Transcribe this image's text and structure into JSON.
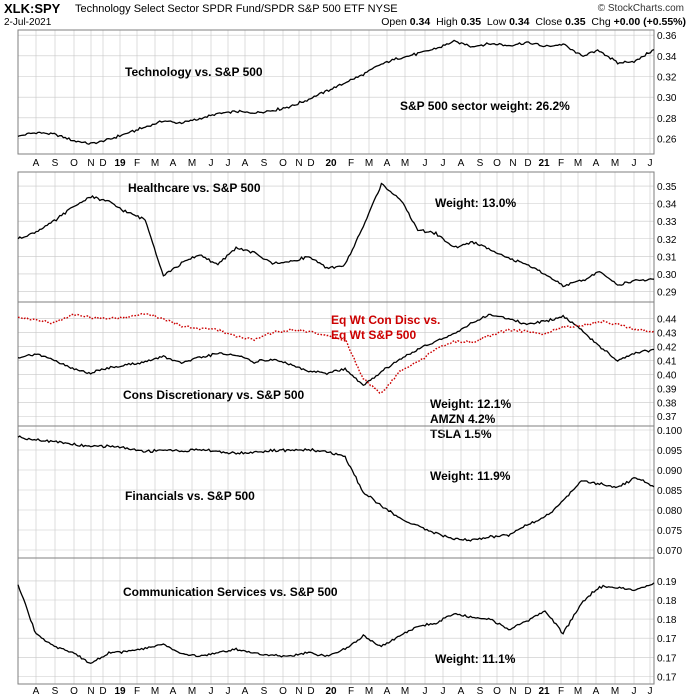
{
  "header": {
    "symbol": "XLK:SPY",
    "name": "Technology Select Sector SPDR Fund/SPDR S&P 500 ETF",
    "exchange": "NYSE",
    "date": "2-Jul-2021",
    "open_label": "Open",
    "open": "0.34",
    "high_label": "High",
    "high": "0.35",
    "low_label": "Low",
    "low": "0.34",
    "close_label": "Close",
    "close": "0.35",
    "chg_label": "Chg",
    "chg": "+0.00 (+0.55%)",
    "watermark": "© StockCharts.com"
  },
  "x_axis_ticks": [
    "A",
    "S",
    "O",
    "N",
    "D",
    "19",
    "F",
    "M",
    "A",
    "M",
    "J",
    "J",
    "A",
    "S",
    "O",
    "N",
    "D",
    "20",
    "F",
    "M",
    "A",
    "M",
    "J",
    "J",
    "A",
    "S",
    "O",
    "N",
    "D",
    "21",
    "F",
    "M",
    "A",
    "M",
    "J",
    "J"
  ],
  "colors": {
    "line": "#000000",
    "overlay": "#cc0000",
    "grid": "#c8c8c8",
    "axis": "#7f7f7f"
  },
  "chart_data": [
    {
      "type": "line",
      "title": "Technology vs. S&P 500",
      "annotations": [
        "S&P 500 sector weight: 26.2%"
      ],
      "x": [
        "2018-08",
        "2018-09",
        "2018-10",
        "2018-11",
        "2018-12",
        "2019-01",
        "2019-02",
        "2019-03",
        "2019-04",
        "2019-05",
        "2019-06",
        "2019-07",
        "2019-08",
        "2019-09",
        "2019-10",
        "2019-11",
        "2019-12",
        "2020-01",
        "2020-02",
        "2020-03",
        "2020-04",
        "2020-05",
        "2020-06",
        "2020-07",
        "2020-08",
        "2020-09",
        "2020-10",
        "2020-11",
        "2020-12",
        "2021-01",
        "2021-02",
        "2021-03",
        "2021-04",
        "2021-05",
        "2021-06",
        "2021-07"
      ],
      "series": [
        {
          "values": [
            0.262,
            0.266,
            0.264,
            0.258,
            0.255,
            0.259,
            0.265,
            0.271,
            0.277,
            0.275,
            0.279,
            0.284,
            0.286,
            0.285,
            0.287,
            0.291,
            0.298,
            0.306,
            0.314,
            0.322,
            0.332,
            0.338,
            0.342,
            0.347,
            0.354,
            0.349,
            0.352,
            0.35,
            0.353,
            0.349,
            0.351,
            0.34,
            0.345,
            0.333,
            0.335,
            0.346
          ]
        }
      ],
      "y_ticks": [
        0.26,
        0.28,
        0.3,
        0.32,
        0.34,
        0.36
      ],
      "ylim": [
        0.245,
        0.365
      ]
    },
    {
      "type": "line",
      "title": "Healthcare vs. S&P 500",
      "annotations": [
        "Weight: 13.0%"
      ],
      "x": [
        "2018-08",
        "2018-09",
        "2018-10",
        "2018-11",
        "2018-12",
        "2019-01",
        "2019-02",
        "2019-03",
        "2019-04",
        "2019-05",
        "2019-06",
        "2019-07",
        "2019-08",
        "2019-09",
        "2019-10",
        "2019-11",
        "2019-12",
        "2020-01",
        "2020-02",
        "2020-03",
        "2020-04",
        "2020-05",
        "2020-06",
        "2020-07",
        "2020-08",
        "2020-09",
        "2020-10",
        "2020-11",
        "2020-12",
        "2021-01",
        "2021-02",
        "2021-03",
        "2021-04",
        "2021-05",
        "2021-06",
        "2021-07"
      ],
      "series": [
        {
          "values": [
            0.32,
            0.324,
            0.33,
            0.338,
            0.344,
            0.341,
            0.335,
            0.331,
            0.299,
            0.306,
            0.311,
            0.305,
            0.315,
            0.312,
            0.306,
            0.307,
            0.31,
            0.303,
            0.305,
            0.327,
            0.351,
            0.343,
            0.325,
            0.323,
            0.315,
            0.318,
            0.314,
            0.309,
            0.305,
            0.3,
            0.293,
            0.296,
            0.301,
            0.294,
            0.296,
            0.297
          ]
        }
      ],
      "y_ticks": [
        0.29,
        0.3,
        0.31,
        0.32,
        0.33,
        0.34,
        0.35
      ],
      "ylim": [
        0.284,
        0.358
      ]
    },
    {
      "type": "line",
      "title": "Cons Discretionary vs. S&P 500",
      "annotations": [
        "Weight: 12.1%",
        "AMZN 4.2%",
        "TSLA 1.5%",
        "Eq Wt Con Disc vs.",
        "Eq Wt S&P 500"
      ],
      "x": [
        "2018-08",
        "2018-09",
        "2018-10",
        "2018-11",
        "2018-12",
        "2019-01",
        "2019-02",
        "2019-03",
        "2019-04",
        "2019-05",
        "2019-06",
        "2019-07",
        "2019-08",
        "2019-09",
        "2019-10",
        "2019-11",
        "2019-12",
        "2020-01",
        "2020-02",
        "2020-03",
        "2020-04",
        "2020-05",
        "2020-06",
        "2020-07",
        "2020-08",
        "2020-09",
        "2020-10",
        "2020-11",
        "2020-12",
        "2021-01",
        "2021-02",
        "2021-03",
        "2021-04",
        "2021-05",
        "2021-06",
        "2021-07"
      ],
      "series": [
        {
          "name": "Cons Discretionary vs. S&P 500",
          "values": [
            0.412,
            0.415,
            0.41,
            0.404,
            0.401,
            0.405,
            0.407,
            0.409,
            0.413,
            0.408,
            0.412,
            0.415,
            0.414,
            0.409,
            0.411,
            0.407,
            0.402,
            0.401,
            0.404,
            0.392,
            0.402,
            0.411,
            0.418,
            0.424,
            0.429,
            0.437,
            0.443,
            0.44,
            0.436,
            0.438,
            0.442,
            0.432,
            0.42,
            0.41,
            0.415,
            0.418
          ]
        },
        {
          "name": "Eq Wt Con Disc vs. Eq Wt S&P 500",
          "values": [
            0.441,
            0.439,
            0.437,
            0.443,
            0.441,
            0.44,
            0.441,
            0.444,
            0.44,
            0.435,
            0.433,
            0.432,
            0.427,
            0.425,
            0.43,
            0.432,
            0.431,
            0.428,
            0.425,
            0.397,
            0.386,
            0.402,
            0.409,
            0.418,
            0.424,
            0.423,
            0.428,
            0.432,
            0.431,
            0.429,
            0.434,
            0.435,
            0.438,
            0.436,
            0.432,
            0.431
          ]
        }
      ],
      "y_ticks": [
        0.37,
        0.38,
        0.39,
        0.4,
        0.41,
        0.42,
        0.43,
        0.44
      ],
      "ylim": [
        0.363,
        0.452
      ]
    },
    {
      "type": "line",
      "title": "Financials vs. S&P 500",
      "annotations": [
        "Weight: 11.9%"
      ],
      "x": [
        "2018-08",
        "2018-09",
        "2018-10",
        "2018-11",
        "2018-12",
        "2019-01",
        "2019-02",
        "2019-03",
        "2019-04",
        "2019-05",
        "2019-06",
        "2019-07",
        "2019-08",
        "2019-09",
        "2019-10",
        "2019-11",
        "2019-12",
        "2020-01",
        "2020-02",
        "2020-03",
        "2020-04",
        "2020-05",
        "2020-06",
        "2020-07",
        "2020-08",
        "2020-09",
        "2020-10",
        "2020-11",
        "2020-12",
        "2021-01",
        "2021-02",
        "2021-03",
        "2021-04",
        "2021-05",
        "2021-06",
        "2021-07"
      ],
      "series": [
        {
          "values": [
            0.0982,
            0.0976,
            0.0972,
            0.0964,
            0.0958,
            0.0961,
            0.0954,
            0.0946,
            0.0951,
            0.0947,
            0.0952,
            0.0946,
            0.0942,
            0.0944,
            0.0948,
            0.095,
            0.0951,
            0.0946,
            0.0932,
            0.0845,
            0.081,
            0.078,
            0.076,
            0.0742,
            0.0728,
            0.0725,
            0.0733,
            0.0738,
            0.0764,
            0.0782,
            0.0822,
            0.0872,
            0.0866,
            0.0855,
            0.0882,
            0.0858
          ]
        }
      ],
      "y_ticks": [
        0.07,
        0.075,
        0.08,
        0.085,
        0.09,
        0.095,
        0.1
      ],
      "ylim": [
        0.068,
        0.101
      ]
    },
    {
      "type": "line",
      "title": "Communication Services vs. S&P 500",
      "annotations": [
        "Weight: 11.1%"
      ],
      "x": [
        "2018-08",
        "2018-09",
        "2018-10",
        "2018-11",
        "2018-12",
        "2019-01",
        "2019-02",
        "2019-03",
        "2019-04",
        "2019-05",
        "2019-06",
        "2019-07",
        "2019-08",
        "2019-09",
        "2019-10",
        "2019-11",
        "2019-12",
        "2020-01",
        "2020-02",
        "2020-03",
        "2020-04",
        "2020-05",
        "2020-06",
        "2020-07",
        "2020-08",
        "2020-09",
        "2020-10",
        "2020-11",
        "2020-12",
        "2021-01",
        "2021-02",
        "2021-03",
        "2021-04",
        "2021-05",
        "2021-06",
        "2021-07"
      ],
      "series": [
        {
          "values": [
            0.189,
            0.176,
            0.173,
            0.1712,
            0.1685,
            0.1712,
            0.1715,
            0.1722,
            0.1735,
            0.171,
            0.1702,
            0.1712,
            0.1722,
            0.171,
            0.1705,
            0.1702,
            0.1712,
            0.1702,
            0.1722,
            0.1755,
            0.173,
            0.1755,
            0.1782,
            0.179,
            0.1815,
            0.1805,
            0.18,
            0.1772,
            0.1795,
            0.1822,
            0.1762,
            0.1842,
            0.1885,
            0.1882,
            0.1875,
            0.1895
          ]
        }
      ],
      "y_ticks": [
        0.165,
        0.17,
        0.175,
        0.18,
        0.185,
        0.19
      ],
      "ylim": [
        0.163,
        0.196
      ]
    }
  ]
}
